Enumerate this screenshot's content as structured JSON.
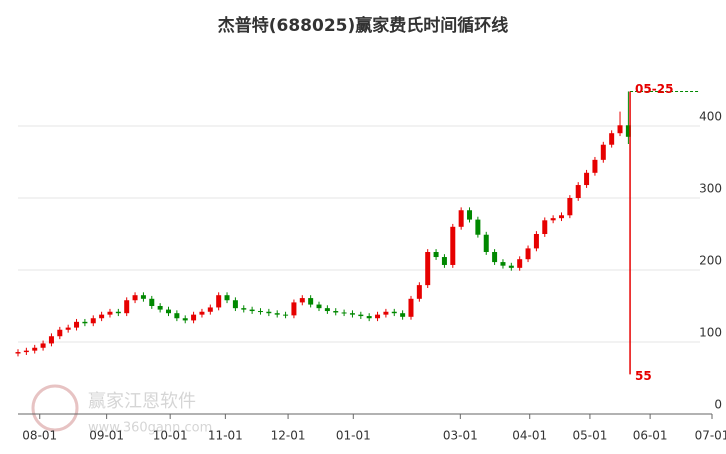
{
  "chart_data": {
    "type": "candlestick",
    "title": "杰普特(688025)赢家费氏时间循环线",
    "watermark": "赢家江恩软件",
    "watermark_url": "www.360gann.com",
    "up_color": "#e60000",
    "down_color": "#008800",
    "open": [
      84,
      86,
      88,
      92,
      98,
      108,
      117,
      120,
      128,
      126,
      133,
      138,
      142,
      140,
      158,
      165,
      160,
      150,
      145,
      140,
      133,
      130,
      138,
      142,
      148,
      165,
      158,
      147,
      145,
      143,
      142,
      140,
      138,
      137,
      155,
      161,
      152,
      147,
      143,
      141,
      140,
      138,
      136,
      133,
      138,
      142,
      140,
      135,
      160,
      179,
      225,
      218,
      207,
      260,
      283,
      270,
      249,
      225,
      211,
      206,
      203,
      215,
      230,
      250,
      269,
      272,
      276,
      300,
      318,
      335,
      353,
      374,
      390,
      401
    ],
    "high": [
      90,
      92,
      96,
      102,
      112,
      121,
      124,
      132,
      132,
      137,
      142,
      146,
      146,
      162,
      169,
      169,
      164,
      154,
      149,
      144,
      137,
      142,
      146,
      152,
      169,
      169,
      162,
      151,
      149,
      147,
      146,
      144,
      142,
      159,
      165,
      165,
      156,
      151,
      147,
      145,
      144,
      142,
      140,
      142,
      146,
      146,
      144,
      164,
      183,
      229,
      229,
      222,
      264,
      287,
      287,
      274,
      253,
      229,
      215,
      210,
      219,
      234,
      254,
      273,
      276,
      280,
      304,
      322,
      339,
      357,
      378,
      394,
      420,
      448
    ],
    "low": [
      80,
      82,
      84,
      88,
      94,
      104,
      113,
      116,
      122,
      122,
      129,
      134,
      136,
      136,
      154,
      156,
      146,
      141,
      136,
      129,
      126,
      126,
      134,
      138,
      144,
      154,
      143,
      141,
      139,
      138,
      136,
      134,
      133,
      133,
      151,
      148,
      143,
      139,
      137,
      136,
      134,
      132,
      129,
      129,
      134,
      136,
      131,
      131,
      156,
      175,
      214,
      203,
      203,
      256,
      266,
      245,
      221,
      207,
      202,
      199,
      199,
      211,
      226,
      246,
      265,
      268,
      272,
      296,
      314,
      331,
      349,
      370,
      386,
      375
    ],
    "close": [
      86,
      88,
      92,
      98,
      108,
      117,
      120,
      128,
      126,
      133,
      138,
      142,
      140,
      158,
      165,
      160,
      150,
      145,
      140,
      133,
      130,
      138,
      142,
      148,
      165,
      158,
      147,
      145,
      143,
      142,
      140,
      138,
      137,
      155,
      161,
      152,
      147,
      143,
      141,
      140,
      138,
      136,
      133,
      138,
      142,
      140,
      135,
      160,
      179,
      225,
      218,
      207,
      260,
      283,
      270,
      249,
      225,
      211,
      206,
      203,
      215,
      230,
      250,
      269,
      272,
      276,
      300,
      318,
      335,
      353,
      374,
      390,
      401,
      385
    ],
    "xlim": [
      0,
      83
    ],
    "xticks": [
      {
        "value": 2.6,
        "label": "08-01"
      },
      {
        "value": 10.6,
        "label": "09-01"
      },
      {
        "value": 18.2,
        "label": "10-01"
      },
      {
        "value": 24.8,
        "label": "11-01"
      },
      {
        "value": 32.3,
        "label": "12-01"
      },
      {
        "value": 40.1,
        "label": "01-01"
      },
      {
        "value": 52.9,
        "label": "03-01"
      },
      {
        "value": 61.2,
        "label": "04-01"
      },
      {
        "value": 68.4,
        "label": "05-01"
      },
      {
        "value": 75.6,
        "label": "06-01"
      },
      {
        "value": 83,
        "label": "07-01"
      }
    ],
    "ylim": [
      0,
      500
    ],
    "yticks": [
      0,
      100,
      200,
      300,
      400
    ],
    "grid": true,
    "marker": {
      "label": "05-25",
      "index": 73.2,
      "high": 448,
      "low": 55,
      "line_color": "#e60000",
      "level_color": "#008800"
    }
  }
}
